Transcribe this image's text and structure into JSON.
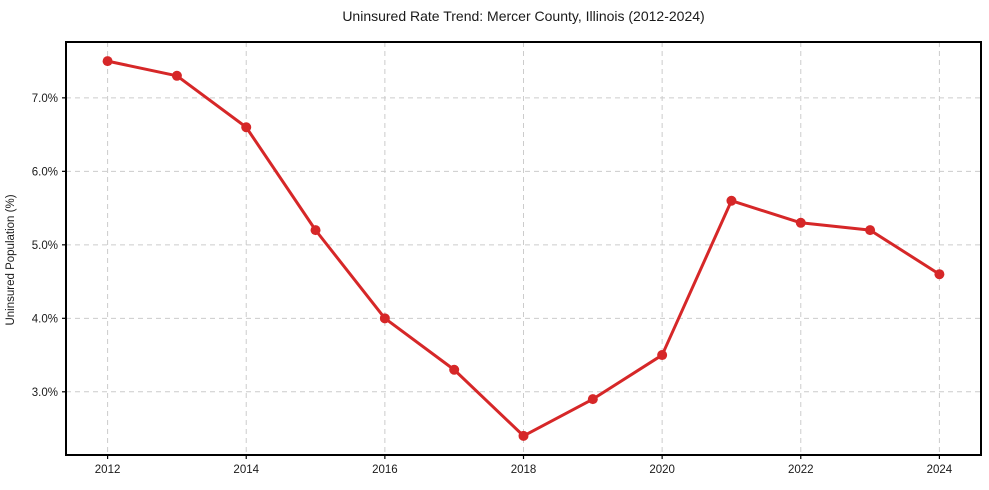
{
  "chart_data": {
    "type": "line",
    "title": "Uninsured Rate Trend: Mercer County, Illinois (2012-2024)",
    "xlabel": "",
    "ylabel": "Uninsured Population (%)",
    "x": [
      2012,
      2013,
      2014,
      2015,
      2016,
      2017,
      2018,
      2019,
      2020,
      2021,
      2022,
      2023,
      2024
    ],
    "values": [
      7.5,
      7.3,
      6.6,
      5.2,
      4.0,
      3.3,
      2.4,
      2.9,
      3.5,
      5.6,
      5.3,
      5.2,
      4.6
    ],
    "x_tick_labels": [
      "2012",
      "2014",
      "2016",
      "2018",
      "2020",
      "2022",
      "2024"
    ],
    "y_tick_labels": [
      "3.0%",
      "4.0%",
      "5.0%",
      "6.0%",
      "7.0%"
    ],
    "xlim": [
      2011.4,
      2024.6
    ],
    "ylim": [
      2.14,
      7.76
    ],
    "grid": true,
    "grid_style": "dashed",
    "legend": false,
    "colors": {
      "line": "#d62728",
      "marker": "#d62728",
      "grid": "#cccccc",
      "spine": "#000000",
      "text": "#1a1a1a",
      "background": "#ffffff"
    }
  }
}
